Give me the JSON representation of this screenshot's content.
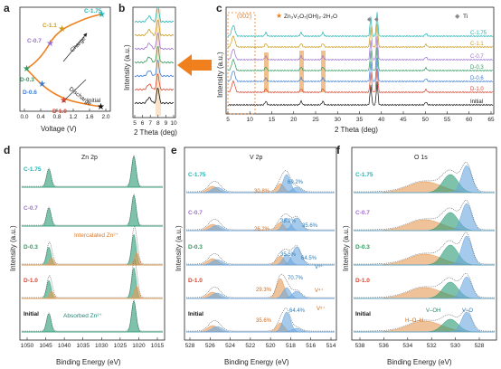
{
  "colors": {
    "c175": "#1fb3b3",
    "c11": "#c99a1d",
    "c07": "#9b6fd0",
    "d03": "#2e9a5e",
    "d06": "#3a7bd5",
    "d10": "#d9412c",
    "initial": "#111111",
    "arrow": "#f07f1e",
    "zn_peak": "#2a9a73",
    "orange_peak": "#e59a55",
    "blue_peak": "#6aa6de"
  },
  "panel_a": {
    "label": "a",
    "xlabel": "Voltage (V)",
    "xticks": [
      "0.0",
      "0.4",
      "0.8",
      "1.2",
      "1.6",
      "2.0"
    ],
    "points": {
      "c175": "C-1.75",
      "c11": "C-1.1",
      "c07": "C-0.7",
      "d03": "D-0.3",
      "d06": "D-0.6",
      "d10": "D-1.0",
      "initial": "Initial"
    },
    "charge": "Charge",
    "discharge": "Discharge"
  },
  "panel_b": {
    "label": "b",
    "ylabel": "Intensity (a.u.)",
    "xlabel": "2 Theta (deg)",
    "xticks": [
      "5",
      "6",
      "7",
      "8",
      "9",
      "10"
    ]
  },
  "panel_c": {
    "label": "c",
    "ylabel": "Intensity (a.u.)",
    "xlabel": "2 Theta (deg)",
    "xticks": [
      "5",
      "10",
      "15",
      "20",
      "25",
      "30",
      "35",
      "40",
      "45",
      "50",
      "55",
      "60",
      "65"
    ],
    "peak_label": "(002)",
    "legend_phase": "Zn₃V₂O₇(OH)₂·2H₂O",
    "legend_ti": "Ti",
    "curves": [
      "C-1.75",
      "C-1.1",
      "C-0.7",
      "D-0.3",
      "D-0.6",
      "D-1.0",
      "Initial"
    ]
  },
  "panel_d": {
    "label": "d",
    "title": "Zn 2p",
    "ylabel": "Intensity (a.u.)",
    "xlabel": "Binding Energy (eV)",
    "xticks": [
      "1050",
      "1045",
      "1040",
      "1035",
      "1030",
      "1025",
      "1020",
      "1015"
    ],
    "rows": [
      "C-1.75",
      "C-0.7",
      "D-0.3",
      "D-1.0",
      "Initial"
    ],
    "intercalated": "Intercalated Zn²⁺",
    "absorbed": "Absorbed Zn²⁺"
  },
  "panel_e": {
    "label": "e",
    "title": "V 2p",
    "ylabel": "Intensity (a.u.)",
    "xlabel": "Binding Energy (eV)",
    "xticks": [
      "528",
      "526",
      "524",
      "522",
      "520",
      "518",
      "516",
      "514"
    ],
    "rows": [
      "C-1.75",
      "C-0.7",
      "D-0.3",
      "D-1.0",
      "Initial"
    ],
    "pct": {
      "c175_a": "30.8%",
      "c175_b": "69.2%",
      "c07_a": "26.2%",
      "c07_b": "38.2%",
      "c07_c": "35.6%",
      "d03_a": "35.5%",
      "d03_b": "64.5%",
      "d10_a": "70.7%",
      "d10_b": "29.3%",
      "init_a": "35.6%",
      "init_b": "64.4%"
    },
    "v3": "V³⁺",
    "v4": "V⁴⁺",
    "v5": "V⁵⁺"
  },
  "panel_f": {
    "label": "f",
    "title": "O 1s",
    "ylabel": "Intensity (a.u.)",
    "xlabel": "Binding Energy (eV)",
    "xticks": [
      "538",
      "536",
      "534",
      "532",
      "530",
      "528"
    ],
    "rows": [
      "C-1.75",
      "C-0.7",
      "D-0.3",
      "D-1.0",
      "Initial"
    ],
    "hoh": "H–O–H",
    "voh": "V–OH",
    "vo": "V–O"
  }
}
